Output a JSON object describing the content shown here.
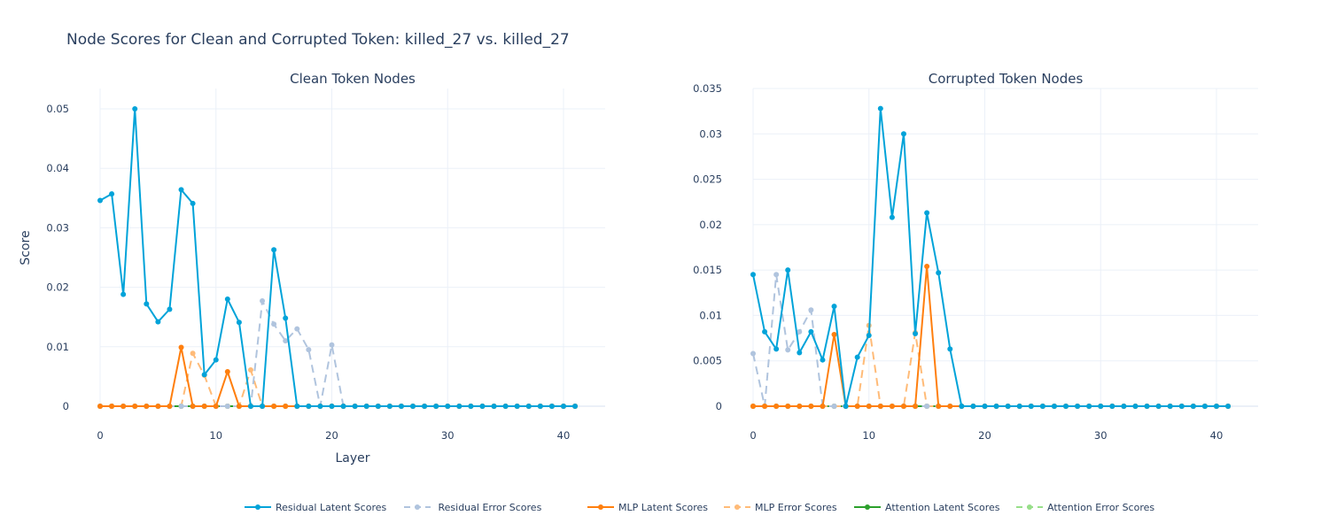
{
  "title": "Node Scores for Clean and Corrupted Token: killed_27 vs. killed_27",
  "legend": [
    {
      "name": "Residual Latent Scores",
      "color": "#00a3d9",
      "dash": false
    },
    {
      "name": " Residual Error Scores",
      "color": "#b0c4de",
      "dash": true
    },
    {
      "name": "MLP Latent Scores",
      "color": "#ff7f0e",
      "dash": false
    },
    {
      "name": "MLP Error Scores",
      "color": "#ffbb78",
      "dash": true
    },
    {
      "name": "Attention Latent Scores",
      "color": "#2ca02c",
      "dash": false
    },
    {
      "name": "Attention Error Scores",
      "color": "#98df8a",
      "dash": true
    }
  ],
  "chart_data": [
    {
      "type": "line",
      "title": "Clean Token Nodes",
      "xlabel": "Layer",
      "ylabel": "Score",
      "xlim": [
        -2.5,
        43.5
      ],
      "ylim": [
        -0.0005,
        0.0533
      ],
      "xticks": [
        0,
        10,
        20,
        30,
        40
      ],
      "xtick_labels": [
        "0",
        "10",
        "20",
        "30",
        "40"
      ],
      "yticks": [
        0,
        0.01,
        0.02,
        0.03,
        0.04,
        0.05
      ],
      "ytick_labels": [
        "0",
        "0.01",
        "0.02",
        "0.03",
        "0.04",
        "0.05"
      ],
      "grid": true,
      "series": [
        {
          "name": "Residual Latent Scores",
          "x": [
            0,
            1,
            2,
            3,
            4,
            5,
            6,
            7,
            8,
            9,
            10,
            11,
            12,
            13,
            14,
            15,
            16,
            17,
            18,
            19,
            20,
            21,
            22,
            23,
            24,
            25,
            26,
            27,
            28,
            29,
            30,
            31,
            32,
            33,
            34,
            35,
            36,
            37,
            38,
            39,
            40,
            41
          ],
          "values": [
            0.0346,
            0.0357,
            0.0188,
            0.05,
            0.0172,
            0.0142,
            0.0163,
            0.0364,
            0.0341,
            0.0053,
            0.0078,
            0.018,
            0.0141,
            0,
            0,
            0.0263,
            0.0148,
            0,
            0,
            0,
            0,
            0,
            0,
            0,
            0,
            0,
            0,
            0,
            0,
            0,
            0,
            0,
            0,
            0,
            0,
            0,
            0,
            0,
            0,
            0,
            0,
            0
          ]
        },
        {
          "name": " Residual Error Scores",
          "x": [
            0,
            1,
            2,
            3,
            4,
            5,
            6,
            7,
            8,
            9,
            10,
            11,
            12,
            13,
            14,
            15,
            16,
            17,
            18,
            19,
            20,
            21,
            22,
            23,
            24,
            25,
            26,
            27,
            28,
            29,
            30,
            31,
            32,
            33,
            34,
            35,
            36,
            37,
            38,
            39,
            40,
            41
          ],
          "values": [
            0,
            0,
            0,
            0,
            0,
            0,
            0,
            0,
            0,
            0,
            0,
            0,
            0,
            0,
            0.0177,
            0.0138,
            0.011,
            0.013,
            0.0095,
            0,
            0.0103,
            0,
            0,
            0,
            0,
            0,
            0,
            0,
            0,
            0,
            0,
            0,
            0,
            0,
            0,
            0,
            0,
            0,
            0,
            0,
            0,
            0
          ]
        },
        {
          "name": "MLP Latent Scores",
          "x": [
            0,
            1,
            2,
            3,
            4,
            5,
            6,
            7,
            8,
            9,
            10,
            11,
            12,
            13,
            14,
            15,
            16,
            17,
            18,
            19,
            20,
            21,
            22,
            23,
            24,
            25,
            26,
            27,
            28,
            29,
            30,
            31,
            32,
            33,
            34,
            35,
            36,
            37,
            38,
            39,
            40,
            41
          ],
          "values": [
            0,
            0,
            0,
            0,
            0,
            0,
            0,
            0.0099,
            0,
            0,
            0,
            0.0058,
            0,
            0,
            0,
            0,
            0,
            0,
            0,
            0,
            0,
            0,
            0,
            0,
            0,
            0,
            0,
            0,
            0,
            0,
            0,
            0,
            0,
            0,
            0,
            0,
            0,
            0,
            0,
            0,
            0,
            0
          ]
        },
        {
          "name": "MLP Error Scores",
          "x": [
            0,
            1,
            2,
            3,
            4,
            5,
            6,
            7,
            8,
            9,
            10,
            11,
            12,
            13,
            14,
            15,
            16,
            17,
            18,
            19,
            20,
            21,
            22,
            23,
            24,
            25,
            26,
            27,
            28,
            29,
            30,
            31,
            32,
            33,
            34,
            35,
            36,
            37,
            38,
            39,
            40,
            41
          ],
          "values": [
            0,
            0,
            0,
            0,
            0,
            0,
            0,
            0,
            0.0089,
            0.0052,
            0,
            0,
            0,
            0.0061,
            0,
            0,
            0,
            0,
            0,
            0,
            0,
            0,
            0,
            0,
            0,
            0,
            0,
            0,
            0,
            0,
            0,
            0,
            0,
            0,
            0,
            0,
            0,
            0,
            0,
            0,
            0,
            0
          ]
        },
        {
          "name": "Attention Latent Scores",
          "x": [
            0,
            1,
            2,
            3,
            4,
            5,
            6,
            7,
            8,
            9,
            10,
            11,
            12,
            13,
            14,
            15,
            16,
            17,
            18,
            19,
            20,
            21,
            22,
            23,
            24,
            25,
            26,
            27,
            28,
            29,
            30,
            31,
            32,
            33,
            34,
            35,
            36,
            37,
            38,
            39,
            40,
            41
          ],
          "values": [
            0,
            0,
            0,
            0,
            0,
            0,
            0,
            0,
            0,
            0,
            0,
            0,
            0,
            0,
            0,
            0,
            0,
            0,
            0,
            0,
            0,
            0,
            0,
            0,
            0,
            0,
            0,
            0,
            0,
            0,
            0,
            0,
            0,
            0,
            0,
            0,
            0,
            0,
            0,
            0,
            0,
            0
          ]
        },
        {
          "name": "Attention Error Scores",
          "x": [
            0,
            1,
            2,
            3,
            4,
            5,
            6,
            7,
            8,
            9,
            10,
            11,
            12,
            13,
            14,
            15,
            16,
            17,
            18,
            19,
            20,
            21,
            22,
            23,
            24,
            25,
            26,
            27,
            28,
            29,
            30,
            31,
            32,
            33,
            34,
            35,
            36,
            37,
            38,
            39,
            40,
            41
          ],
          "values": [
            0,
            0,
            0,
            0,
            0,
            0,
            0,
            0,
            0,
            0,
            0,
            0,
            0,
            0,
            0,
            0,
            0,
            0,
            0,
            0,
            0,
            0,
            0,
            0,
            0,
            0,
            0,
            0,
            0,
            0,
            0,
            0,
            0,
            0,
            0,
            0,
            0,
            0,
            0,
            0,
            0,
            0
          ]
        }
      ]
    },
    {
      "type": "line",
      "title": "Corrupted Token Nodes",
      "xlabel": "",
      "ylabel": "",
      "xlim": [
        -2.5,
        43.5
      ],
      "ylim": [
        -0.0003,
        0.035
      ],
      "xticks": [
        0,
        10,
        20,
        30,
        40
      ],
      "xtick_labels": [
        "0",
        "10",
        "20",
        "30",
        "40"
      ],
      "yticks": [
        0,
        0.005,
        0.01,
        0.015,
        0.02,
        0.025,
        0.03,
        0.035
      ],
      "ytick_labels": [
        "0",
        "0.005",
        "0.01",
        "0.015",
        "0.02",
        "0.025",
        "0.03",
        "0.035"
      ],
      "grid": true,
      "series": [
        {
          "name": "Residual Latent Scores",
          "x": [
            0,
            1,
            2,
            3,
            4,
            5,
            6,
            7,
            8,
            9,
            10,
            11,
            12,
            13,
            14,
            15,
            16,
            17,
            18,
            19,
            20,
            21,
            22,
            23,
            24,
            25,
            26,
            27,
            28,
            29,
            30,
            31,
            32,
            33,
            34,
            35,
            36,
            37,
            38,
            39,
            40,
            41
          ],
          "values": [
            0.0145,
            0.0082,
            0.0063,
            0.015,
            0.0059,
            0.0082,
            0.0051,
            0.011,
            0,
            0.0054,
            0.0078,
            0.0328,
            0.0208,
            0.03,
            0.008,
            0.0213,
            0.0147,
            0.0063,
            0,
            0,
            0,
            0,
            0,
            0,
            0,
            0,
            0,
            0,
            0,
            0,
            0,
            0,
            0,
            0,
            0,
            0,
            0,
            0,
            0,
            0,
            0,
            0
          ]
        },
        {
          "name": " Residual Error Scores",
          "x": [
            0,
            1,
            2,
            3,
            4,
            5,
            6,
            7,
            8,
            9,
            10,
            11,
            12,
            13,
            14,
            15,
            16,
            17,
            18,
            19,
            20,
            21,
            22,
            23,
            24,
            25,
            26,
            27,
            28,
            29,
            30,
            31,
            32,
            33,
            34,
            35,
            36,
            37,
            38,
            39,
            40,
            41
          ],
          "values": [
            0.0058,
            0,
            0.0145,
            0.0062,
            0.0082,
            0.0106,
            0,
            0,
            0,
            0,
            0,
            0,
            0,
            0,
            0,
            0,
            0,
            0,
            0,
            0,
            0,
            0,
            0,
            0,
            0,
            0,
            0,
            0,
            0,
            0,
            0,
            0,
            0,
            0,
            0,
            0,
            0,
            0,
            0,
            0,
            0,
            0
          ]
        },
        {
          "name": "MLP Latent Scores",
          "x": [
            0,
            1,
            2,
            3,
            4,
            5,
            6,
            7,
            8,
            9,
            10,
            11,
            12,
            13,
            14,
            15,
            16,
            17,
            18,
            19,
            20,
            21,
            22,
            23,
            24,
            25,
            26,
            27,
            28,
            29,
            30,
            31,
            32,
            33,
            34,
            35,
            36,
            37,
            38,
            39,
            40,
            41
          ],
          "values": [
            0,
            0,
            0,
            0,
            0,
            0,
            0,
            0.0079,
            0,
            0,
            0,
            0,
            0,
            0,
            0,
            0.0154,
            0,
            0,
            0,
            0,
            0,
            0,
            0,
            0,
            0,
            0,
            0,
            0,
            0,
            0,
            0,
            0,
            0,
            0,
            0,
            0,
            0,
            0,
            0,
            0,
            0,
            0
          ]
        },
        {
          "name": "MLP Error Scores",
          "x": [
            0,
            1,
            2,
            3,
            4,
            5,
            6,
            7,
            8,
            9,
            10,
            11,
            12,
            13,
            14,
            15,
            16,
            17,
            18,
            19,
            20,
            21,
            22,
            23,
            24,
            25,
            26,
            27,
            28,
            29,
            30,
            31,
            32,
            33,
            34,
            35,
            36,
            37,
            38,
            39,
            40,
            41
          ],
          "values": [
            0,
            0,
            0,
            0,
            0,
            0,
            0,
            0,
            0,
            0,
            0.0089,
            0,
            0,
            0,
            0.0081,
            0,
            0,
            0,
            0,
            0,
            0,
            0,
            0,
            0,
            0,
            0,
            0,
            0,
            0,
            0,
            0,
            0,
            0,
            0,
            0,
            0,
            0,
            0,
            0,
            0,
            0,
            0
          ]
        },
        {
          "name": "Attention Latent Scores",
          "x": [
            0,
            1,
            2,
            3,
            4,
            5,
            6,
            7,
            8,
            9,
            10,
            11,
            12,
            13,
            14,
            15,
            16,
            17,
            18,
            19,
            20,
            21,
            22,
            23,
            24,
            25,
            26,
            27,
            28,
            29,
            30,
            31,
            32,
            33,
            34,
            35,
            36,
            37,
            38,
            39,
            40,
            41
          ],
          "values": [
            0,
            0,
            0,
            0,
            0,
            0,
            0,
            0,
            0,
            0,
            0,
            0,
            0,
            0,
            0,
            0,
            0,
            0,
            0,
            0,
            0,
            0,
            0,
            0,
            0,
            0,
            0,
            0,
            0,
            0,
            0,
            0,
            0,
            0,
            0,
            0,
            0,
            0,
            0,
            0,
            0,
            0
          ]
        },
        {
          "name": "Attention Error Scores",
          "x": [
            0,
            1,
            2,
            3,
            4,
            5,
            6,
            7,
            8,
            9,
            10,
            11,
            12,
            13,
            14,
            15,
            16,
            17,
            18,
            19,
            20,
            21,
            22,
            23,
            24,
            25,
            26,
            27,
            28,
            29,
            30,
            31,
            32,
            33,
            34,
            35,
            36,
            37,
            38,
            39,
            40,
            41
          ],
          "values": [
            0,
            0,
            0,
            0,
            0,
            0,
            0,
            0,
            0,
            0,
            0,
            0,
            0,
            0,
            0,
            0,
            0,
            0,
            0,
            0,
            0,
            0,
            0,
            0,
            0,
            0,
            0,
            0,
            0,
            0,
            0,
            0,
            0,
            0,
            0,
            0,
            0,
            0,
            0,
            0,
            0,
            0
          ]
        }
      ]
    }
  ]
}
